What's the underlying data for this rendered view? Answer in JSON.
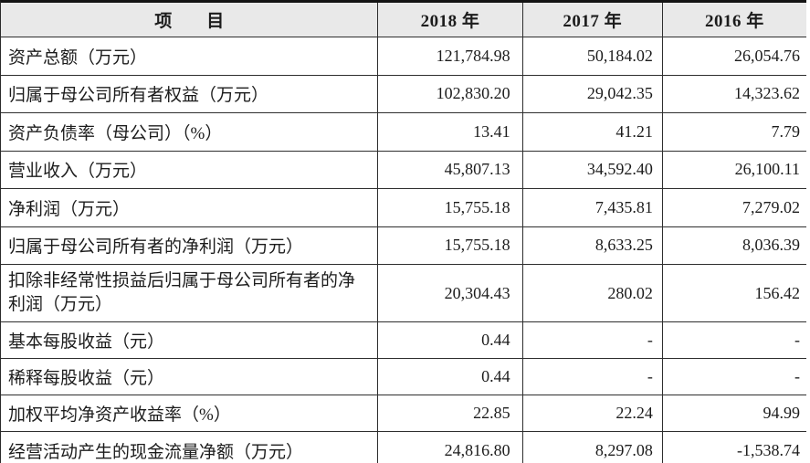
{
  "table": {
    "header": {
      "item": "项　　目",
      "y2018": "2018 年",
      "y2017": "2017 年",
      "y2016": "2016 年"
    },
    "rows": [
      {
        "label": "资产总额（万元）",
        "y2018": "121,784.98",
        "y2017": "50,184.02",
        "y2016": "26,054.76"
      },
      {
        "label": "归属于母公司所有者权益（万元）",
        "y2018": "102,830.20",
        "y2017": "29,042.35",
        "y2016": "14,323.62"
      },
      {
        "label": "资产负债率（母公司）（%）",
        "y2018": "13.41",
        "y2017": "41.21",
        "y2016": "7.79"
      },
      {
        "label": "营业收入（万元）",
        "y2018": "45,807.13",
        "y2017": "34,592.40",
        "y2016": "26,100.11"
      },
      {
        "label": "净利润（万元）",
        "y2018": "15,755.18",
        "y2017": "7,435.81",
        "y2016": "7,279.02"
      },
      {
        "label": "归属于母公司所有者的净利润（万元）",
        "y2018": "15,755.18",
        "y2017": "8,633.25",
        "y2016": "8,036.39"
      },
      {
        "label": "扣除非经常性损益后归属于母公司所有者的净利润（万元）",
        "y2018": "20,304.43",
        "y2017": "280.02",
        "y2016": "156.42"
      },
      {
        "label": "基本每股收益（元）",
        "y2018": "0.44",
        "y2017": "-",
        "y2016": "-"
      },
      {
        "label": "稀释每股收益（元）",
        "y2018": "0.44",
        "y2017": "-",
        "y2016": "-"
      },
      {
        "label": "加权平均净资产收益率（%）",
        "y2018": "22.85",
        "y2017": "22.24",
        "y2016": "94.99"
      },
      {
        "label": "经营活动产生的现金流量净额（万元）",
        "y2018": "24,816.80",
        "y2017": "8,297.08",
        "y2016": "-1,538.74"
      }
    ]
  }
}
